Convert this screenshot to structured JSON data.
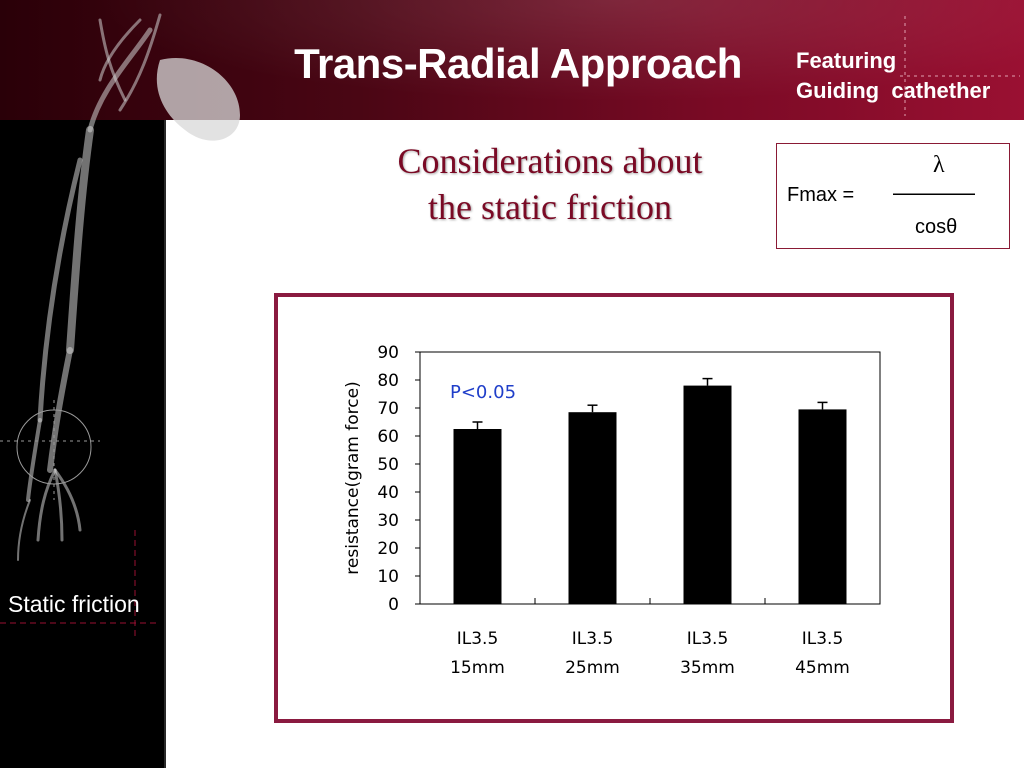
{
  "header": {
    "title": "Trans-Radial Approach",
    "featuring_line1": "Featuring",
    "featuring_line2": "Guiding  cathether"
  },
  "heading": {
    "line1": "Considerations about",
    "line2": "the static friction"
  },
  "formula": {
    "numerator": "λ",
    "lhs": "Fmax =",
    "bar": "————",
    "denominator": "cosθ"
  },
  "sidebar": {
    "label": "Static friction"
  },
  "colors": {
    "accent": "#8a1a40",
    "heading": "#7a0a25",
    "annotation": "#1f3ec9",
    "bar": "#000000"
  },
  "chart_data": {
    "type": "bar",
    "categories": [
      [
        "IL3.5",
        "15mm"
      ],
      [
        "IL3.5",
        "25mm"
      ],
      [
        "IL3.5",
        "35mm"
      ],
      [
        "IL3.5",
        "45mm"
      ]
    ],
    "values": [
      62.5,
      68.5,
      78,
      69.5
    ],
    "errors": [
      2.5,
      2.5,
      2.5,
      2.5
    ],
    "ylabel": "resistance(gram force)",
    "xlabel": "",
    "ylim": [
      0,
      90
    ],
    "yticks": [
      0,
      10,
      20,
      30,
      40,
      50,
      60,
      70,
      80,
      90
    ],
    "annotation": "P<0.05",
    "grid": false
  }
}
